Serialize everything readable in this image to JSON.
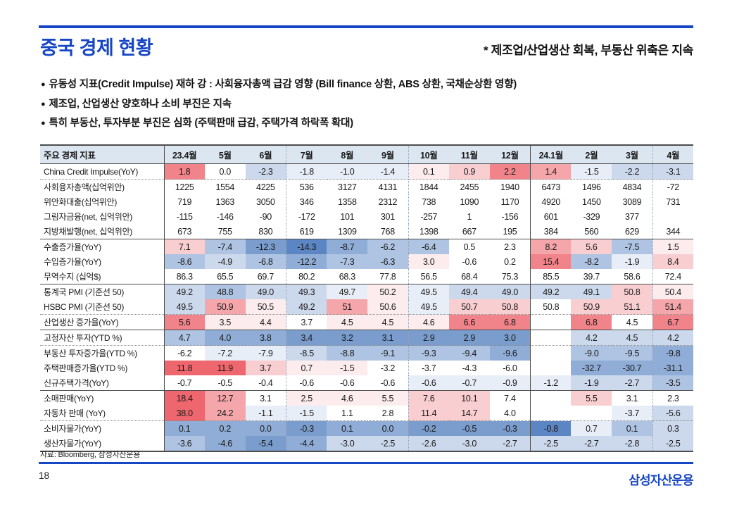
{
  "slide": {
    "title": "중국 경제 현황",
    "subtitle": "* 제조업/산업생산 회복, 부동산 위축은 지속",
    "bullets": [
      "유동성 지표(Credit Impulse) 재하 강 : 사회융자총액 급감 영향 (Bill finance 상환, ABS 상환, 국채순상환 영향)",
      "제조업, 산업생산 양호하나 소비 부진은 지속",
      "특히 부동산, 투자부분 부진은 심화 (주택판매 급감, 주택가격 하락폭 확대)"
    ],
    "source": "자료: Bloomberg, 삼성자산운용",
    "page_number": "18",
    "logo_text": "삼성자산운용",
    "accent_color": "#1645c6",
    "header_fill": "#dce6f1"
  },
  "table": {
    "header_label": "주요 경제 지표",
    "columns": [
      "23.4월",
      "5월",
      "6월",
      "7월",
      "8월",
      "9월",
      "10월",
      "11월",
      "12월",
      "24.1월",
      "2월",
      "3월",
      "4월"
    ],
    "dividers": {
      "dotted_after": [
        2,
        5,
        11
      ],
      "solid_after": [
        8
      ]
    },
    "palette": {
      "b1": "#e8eef7",
      "b2": "#ccd9ec",
      "b3": "#aec4e2",
      "b4": "#8fadd6",
      "b5": "#7b9dcd",
      "b6": "#5c85c3",
      "r1": "#fceced",
      "r2": "#f9ced1",
      "r3": "#f5a6ab",
      "r4": "#f1838a",
      "r5": "#ee666e"
    },
    "rows": [
      {
        "label": "China Credit Impulse(YoY)",
        "border": "dotted",
        "values": [
          "1.8",
          "0.0",
          "-2.3",
          "-1.8",
          "-1.0",
          "-1.4",
          "0.1",
          "0.9",
          "2.2",
          "1.4",
          "-1.5",
          "-2.2",
          "-3.1"
        ],
        "tones": [
          "r4",
          "",
          "b2",
          "b1",
          "b1",
          "b1",
          "r1",
          "r2",
          "r4",
          "r3",
          "b1",
          "b2",
          "b2"
        ]
      },
      {
        "label": "사회융자총액(십억위안)",
        "border": "none",
        "values": [
          "1225",
          "1554",
          "4225",
          "536",
          "3127",
          "4131",
          "1844",
          "2455",
          "1940",
          "6473",
          "1496",
          "4834",
          "-72"
        ],
        "tones": [
          "",
          "",
          "",
          "",
          "",
          "",
          "",
          "",
          "",
          "",
          "",
          "",
          ""
        ]
      },
      {
        "label": "위안화대출(십억위안)",
        "border": "none",
        "values": [
          "719",
          "1363",
          "3050",
          "346",
          "1358",
          "2312",
          "738",
          "1090",
          "1170",
          "4920",
          "1450",
          "3089",
          "731"
        ],
        "tones": [
          "",
          "",
          "",
          "",
          "",
          "",
          "",
          "",
          "",
          "",
          "",
          "",
          ""
        ]
      },
      {
        "label": "그림자금융(net, 십억위안)",
        "border": "none",
        "values": [
          "-115",
          "-146",
          "-90",
          "-172",
          "101",
          "301",
          "-257",
          "1",
          "-156",
          "601",
          "-329",
          "377",
          ""
        ],
        "tones": [
          "",
          "",
          "",
          "",
          "",
          "",
          "",
          "",
          "",
          "",
          "",
          "",
          ""
        ]
      },
      {
        "label": "지방채발행(net, 십억위안)",
        "border": "solid",
        "values": [
          "673",
          "755",
          "830",
          "619",
          "1309",
          "768",
          "1398",
          "667",
          "195",
          "384",
          "560",
          "629",
          "344"
        ],
        "tones": [
          "",
          "",
          "",
          "",
          "",
          "",
          "",
          "",
          "",
          "",
          "",
          "",
          ""
        ]
      },
      {
        "label": "수출증가율(YoY)",
        "border": "none",
        "values": [
          "7.1",
          "-7.4",
          "-12.3",
          "-14.3",
          "-8.7",
          "-6.2",
          "-6.4",
          "0.5",
          "2.3",
          "8.2",
          "5.6",
          "-7.5",
          "1.5"
        ],
        "tones": [
          "r2",
          "b3",
          "b5",
          "b6",
          "b4",
          "b3",
          "b3",
          "",
          "",
          "r3",
          "r2",
          "b3",
          "r1"
        ]
      },
      {
        "label": "수입증가율(YoY)",
        "border": "none",
        "values": [
          "-8.6",
          "-4.9",
          "-6.8",
          "-12.2",
          "-7.3",
          "-6.3",
          "3.0",
          "-0.6",
          "0.2",
          "15.4",
          "-8.2",
          "-1.9",
          "8.4"
        ],
        "tones": [
          "b3",
          "b2",
          "b3",
          "b4",
          "b3",
          "b3",
          "r1",
          "",
          "",
          "r4",
          "b3",
          "b1",
          "r2"
        ]
      },
      {
        "label": "무역수지 (십억$)",
        "border": "solid",
        "values": [
          "86.3",
          "65.5",
          "69.7",
          "80.2",
          "68.3",
          "77.8",
          "56.5",
          "68.4",
          "75.3",
          "85.5",
          "39.7",
          "58.6",
          "72.4"
        ],
        "tones": [
          "",
          "",
          "",
          "",
          "",
          "",
          "",
          "",
          "",
          "",
          "",
          "",
          ""
        ]
      },
      {
        "label": "통계국 PMI (기준선 50)",
        "border": "none",
        "values": [
          "49.2",
          "48.8",
          "49.0",
          "49.3",
          "49.7",
          "50.2",
          "49.5",
          "49.4",
          "49.0",
          "49.2",
          "49.1",
          "50.8",
          "50.4"
        ],
        "tones": [
          "b2",
          "b3",
          "b2",
          "b2",
          "b1",
          "r1",
          "b1",
          "b2",
          "b2",
          "b2",
          "b2",
          "r2",
          "r1"
        ]
      },
      {
        "label": "HSBC PMI (기준선 50)",
        "border": "dotted",
        "values": [
          "49.5",
          "50.9",
          "50.5",
          "49.2",
          "51",
          "50.6",
          "49.5",
          "50.7",
          "50.8",
          "50.8",
          "50.9",
          "51.1",
          "51.4"
        ],
        "tones": [
          "b2",
          "r3",
          "r1",
          "b2",
          "r3",
          "r1",
          "b1",
          "r2",
          "r2",
          "",
          "r2",
          "r2",
          "r3"
        ]
      },
      {
        "label": "산업생산 증가율(YoY)",
        "border": "solid",
        "values": [
          "5.6",
          "3.5",
          "4.4",
          "3.7",
          "4.5",
          "4.5",
          "4.6",
          "6.6",
          "6.8",
          "",
          "6.8",
          "4.5",
          "6.7"
        ],
        "tones": [
          "r4",
          "r1",
          "r1",
          "",
          "r1",
          "r1",
          "r1",
          "r4",
          "r4",
          "",
          "r4",
          "",
          "r4"
        ]
      },
      {
        "label": "고정자산 투자(YTD %)",
        "border": "dotted",
        "values": [
          "4.7",
          "4.0",
          "3.8",
          "3.4",
          "3.2",
          "3.1",
          "2.9",
          "2.9",
          "3.0",
          "",
          "4.2",
          "4.5",
          "4.2"
        ],
        "tones": [
          "b3",
          "b4",
          "b4",
          "b5",
          "b5",
          "b5",
          "b5",
          "b5",
          "b5",
          "",
          "b2",
          "b2",
          "b2"
        ]
      },
      {
        "label": "부동산 투자증가율(YTD %)",
        "border": "none",
        "values": [
          "-6.2",
          "-7.2",
          "-7.9",
          "-8.5",
          "-8.8",
          "-9.1",
          "-9.3",
          "-9.4",
          "-9.6",
          "",
          "-9.0",
          "-9.5",
          "-9.8"
        ],
        "tones": [
          "",
          "b1",
          "b1",
          "b2",
          "b3",
          "b3",
          "b3",
          "b3",
          "b4",
          "",
          "b3",
          "b3",
          "b4"
        ]
      },
      {
        "label": "주택판매증가율(YTD %)",
        "border": "none",
        "values": [
          "11.8",
          "11.9",
          "3.7",
          "0.7",
          "-1.5",
          "-3.2",
          "-3.7",
          "-4.3",
          "-6.0",
          "",
          "-32.7",
          "-30.7",
          "-31.1"
        ],
        "tones": [
          "r5",
          "r5",
          "r2",
          "r1",
          "r1",
          "",
          "",
          "",
          "",
          "",
          "b4",
          "b4",
          "b4"
        ]
      },
      {
        "label": "신규주택가격(YoY)",
        "border": "solid",
        "values": [
          "-0.7",
          "-0.5",
          "-0.4",
          "-0.6",
          "-0.6",
          "-0.6",
          "-0.6",
          "-0.7",
          "-0.9",
          "-1.2",
          "-1.9",
          "-2.7",
          "-3.5"
        ],
        "tones": [
          "",
          "",
          "",
          "",
          "",
          "",
          "b1",
          "b1",
          "b1",
          "b1",
          "b2",
          "b2",
          "b3"
        ]
      },
      {
        "label": "소매판매(YoY)",
        "border": "none",
        "values": [
          "18.4",
          "12.7",
          "3.1",
          "2.5",
          "4.6",
          "5.5",
          "7.6",
          "10.1",
          "7.4",
          "",
          "5.5",
          "3.1",
          "2.3"
        ],
        "tones": [
          "r5",
          "r3",
          "",
          "r1",
          "r1",
          "r1",
          "r2",
          "r2",
          "",
          "",
          "r2",
          "",
          ""
        ]
      },
      {
        "label": "자동차 판매 (YoY)",
        "border": "dotted",
        "values": [
          "38.0",
          "24.2",
          "-1.1",
          "-1.5",
          "1.1",
          "2.8",
          "11.4",
          "14.7",
          "4.0",
          "",
          "",
          "-3.7",
          "-5.6"
        ],
        "tones": [
          "r5",
          "r3",
          "b1",
          "b1",
          "",
          "",
          "r2",
          "r2",
          "",
          "",
          "",
          "b1",
          "b2"
        ]
      },
      {
        "label": "소비자물가(YoY)",
        "border": "none",
        "values": [
          "0.1",
          "0.2",
          "0.0",
          "-0.3",
          "0.1",
          "0.0",
          "-0.2",
          "-0.5",
          "-0.3",
          "-0.8",
          "0.7",
          "0.1",
          "0.3"
        ],
        "tones": [
          "b4",
          "b4",
          "b4",
          "b5",
          "b4",
          "b4",
          "b5",
          "b5",
          "b5",
          "b6",
          "b1",
          "b3",
          "b2"
        ]
      },
      {
        "label": "생산자물가(YoY)",
        "border": "none",
        "values": [
          "-3.6",
          "-4.6",
          "-5.4",
          "-4.4",
          "-3.0",
          "-2.5",
          "-2.6",
          "-3.0",
          "-2.7",
          "-2.5",
          "-2.7",
          "-2.8",
          "-2.5"
        ],
        "tones": [
          "b3",
          "b4",
          "b5",
          "b4",
          "b2",
          "b2",
          "b2",
          "b2",
          "b2",
          "b2",
          "b2",
          "b2",
          "b2"
        ]
      }
    ]
  }
}
